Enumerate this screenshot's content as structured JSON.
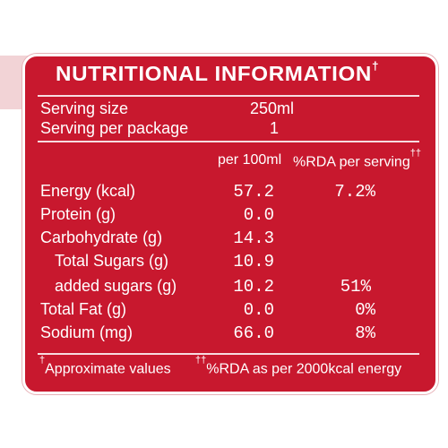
{
  "label": {
    "title": "NUTRITIONAL INFORMATION",
    "title_mark": "†",
    "serving_size_label": "Serving size",
    "serving_size_value": "250ml",
    "serving_per_package_label": "Serving per package",
    "serving_per_package_value": "1",
    "col_per100": "per 100ml",
    "col_rda": "%RDA per serving",
    "col_rda_mark": "††",
    "rows": [
      {
        "name": "Energy (kcal)",
        "per100": "57.2",
        "rda": "7.2%"
      },
      {
        "name": "Protein (g)",
        "per100": "0.0",
        "rda": ""
      },
      {
        "name": "Carbohydrate (g)",
        "per100": "14.3",
        "rda": ""
      },
      {
        "name": "Total Sugars (g)",
        "per100": "10.9",
        "rda": ""
      },
      {
        "name": "added sugars (g)",
        "per100": "10.2",
        "rda": "51%"
      },
      {
        "name": "Total Fat (g)",
        "per100": "0.0",
        "rda": "0%"
      },
      {
        "name": "Sodium (mg)",
        "per100": "66.0",
        "rda": "8%"
      }
    ],
    "footnote_1_mark": "†",
    "footnote_1": "Approximate values",
    "footnote_2_mark": "††",
    "footnote_2": "%RDA as per 2000kcal energy"
  },
  "colors": {
    "panel": "#c8182e",
    "text": "#ffffff",
    "corner": "#f2d3d6"
  }
}
